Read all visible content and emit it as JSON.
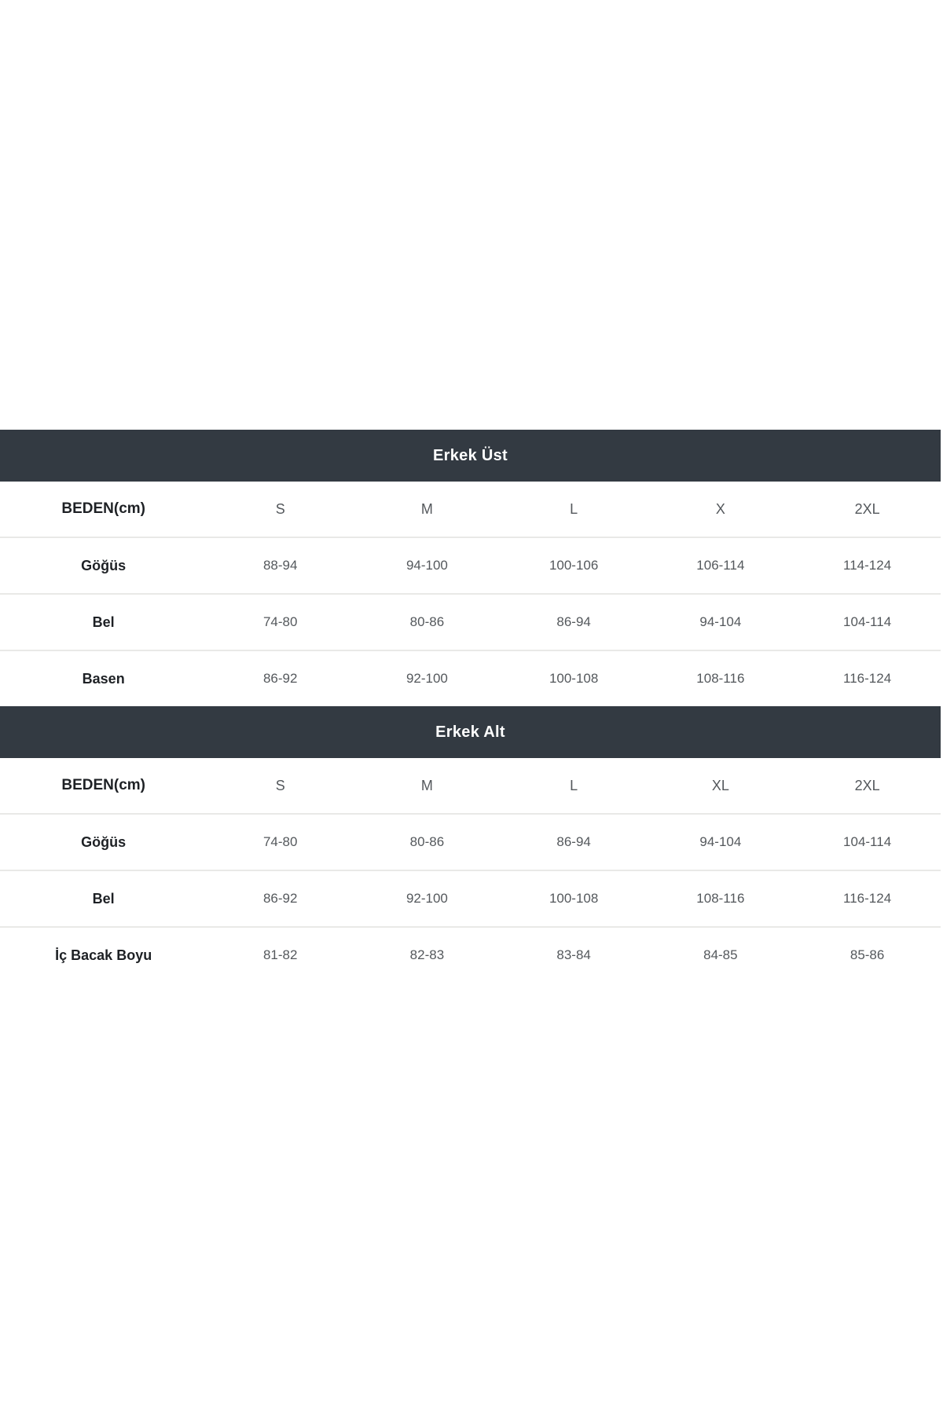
{
  "colors": {
    "section_bar_bg": "#333a42",
    "section_bar_text": "#ffffff",
    "label_text": "#1e2125",
    "value_text": "#54585c",
    "row_border": "#e9e9e7"
  },
  "tables": [
    {
      "title": "Erkek Üst",
      "header": [
        "BEDEN(cm)",
        "S",
        "M",
        "L",
        "X",
        "2XL"
      ],
      "rows": [
        {
          "label": "Göğüs",
          "values": [
            "88-94",
            "94-100",
            "100-106",
            "106-114",
            "114-124"
          ]
        },
        {
          "label": "Bel",
          "values": [
            "74-80",
            "80-86",
            "86-94",
            "94-104",
            "104-114"
          ]
        },
        {
          "label": "Basen",
          "values": [
            "86-92",
            "92-100",
            "100-108",
            "108-116",
            "116-124"
          ]
        }
      ]
    },
    {
      "title": "Erkek Alt",
      "header": [
        "BEDEN(cm)",
        "S",
        "M",
        "L",
        "XL",
        "2XL"
      ],
      "rows": [
        {
          "label": "Göğüs",
          "values": [
            "74-80",
            "80-86",
            "86-94",
            "94-104",
            "104-114"
          ]
        },
        {
          "label": "Bel",
          "values": [
            "86-92",
            "92-100",
            "100-108",
            "108-116",
            "116-124"
          ]
        },
        {
          "label": "İç Bacak Boyu",
          "values": [
            "81-82",
            "82-83",
            "83-84",
            "84-85",
            "85-86"
          ]
        }
      ]
    }
  ]
}
